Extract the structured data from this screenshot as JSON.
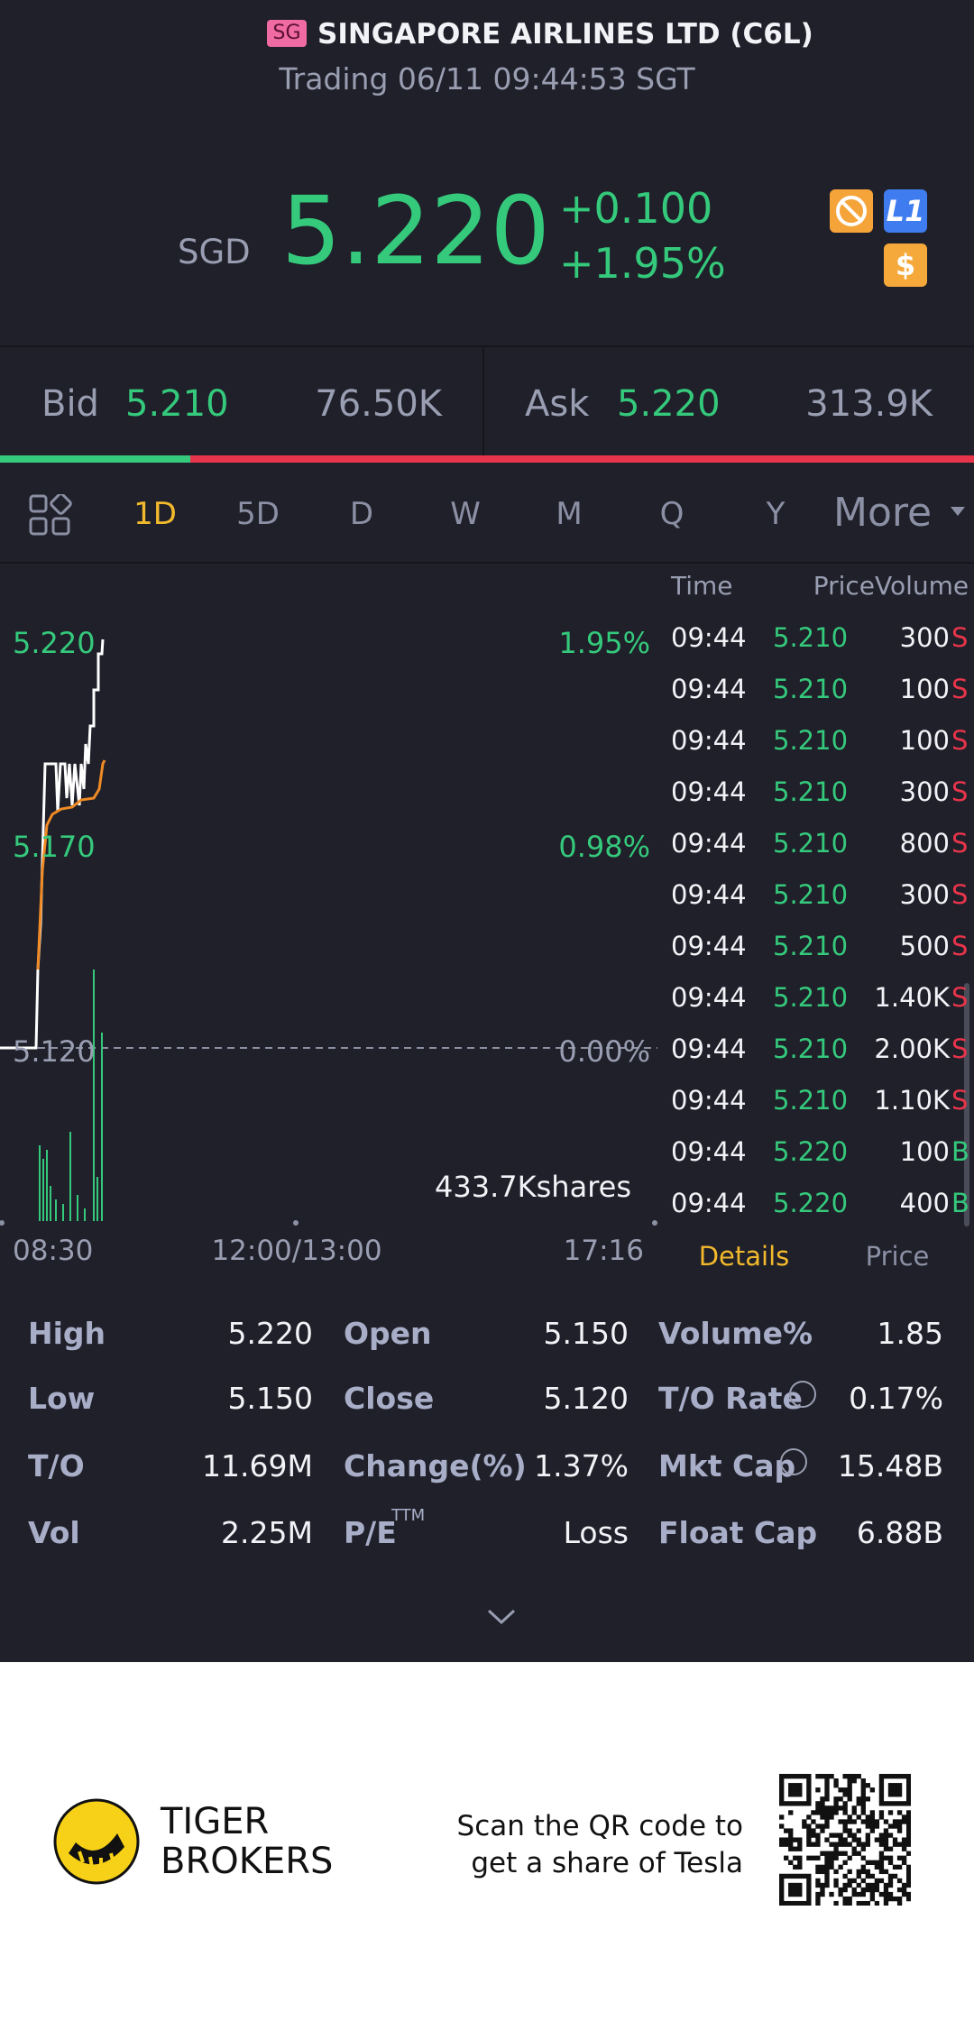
{
  "header": {
    "badge": "SG",
    "title": "SINGAPORE AIRLINES LTD (C6L)",
    "status": "Trading 06/11 09:44:53 SGT"
  },
  "quote": {
    "currency": "SGD",
    "price": "5.220",
    "change": "+0.100",
    "change_pct": "+1.95%",
    "icons": [
      "L1",
      "$"
    ]
  },
  "book": {
    "bid_label": "Bid",
    "bid": "5.210",
    "bid_size": "76.50K",
    "ask_label": "Ask",
    "ask": "5.220",
    "ask_size": "313.9K"
  },
  "tabs": [
    "1D",
    "5D",
    "D",
    "W",
    "M",
    "Q",
    "Y",
    "More"
  ],
  "chart": {
    "price_labels": [
      "5.220",
      "5.170",
      "5.120"
    ],
    "pct_labels": [
      "1.95%",
      "0.98%",
      "0.00%"
    ],
    "time_labels": [
      "08:30",
      "12:00/13:00",
      "17:16"
    ],
    "volume": "433.7Kshares"
  },
  "ticks": {
    "headers": [
      "Time",
      "Price",
      "Volume"
    ],
    "rows": [
      [
        "09:44",
        "5.210",
        "300",
        "S"
      ],
      [
        "09:44",
        "5.210",
        "100",
        "S"
      ],
      [
        "09:44",
        "5.210",
        "100",
        "S"
      ],
      [
        "09:44",
        "5.210",
        "300",
        "S"
      ],
      [
        "09:44",
        "5.210",
        "800",
        "S"
      ],
      [
        "09:44",
        "5.210",
        "300",
        "S"
      ],
      [
        "09:44",
        "5.210",
        "500",
        "S"
      ],
      [
        "09:44",
        "5.210",
        "1.40K",
        "S"
      ],
      [
        "09:44",
        "5.210",
        "2.00K",
        "S"
      ],
      [
        "09:44",
        "5.210",
        "1.10K",
        "S"
      ],
      [
        "09:44",
        "5.220",
        "100",
        "B"
      ],
      [
        "09:44",
        "5.220",
        "400",
        "B"
      ]
    ]
  },
  "side_tabs": [
    "Details",
    "Price"
  ],
  "stats": [
    [
      [
        "High",
        "5.220"
      ],
      [
        "Open",
        "5.150"
      ],
      [
        "Volume%",
        "1.85"
      ]
    ],
    [
      [
        "Low",
        "5.150"
      ],
      [
        "Close",
        "5.120"
      ],
      [
        "T/O Rate",
        "0.17%"
      ]
    ],
    [
      [
        "T/O",
        "11.69M"
      ],
      [
        "Change(%)",
        "1.37%"
      ],
      [
        "Mkt Cap",
        "15.48B"
      ]
    ],
    [
      [
        "Vol",
        "2.25M"
      ],
      [
        "P/E",
        "Loss"
      ],
      [
        "Float Cap",
        "6.88B"
      ]
    ]
  ],
  "pe_superscript": "TTM",
  "footer": {
    "brand": [
      "TIGER",
      "BROKERS"
    ],
    "promo": [
      "Scan the QR code to",
      "get a share of Tesla"
    ]
  }
}
